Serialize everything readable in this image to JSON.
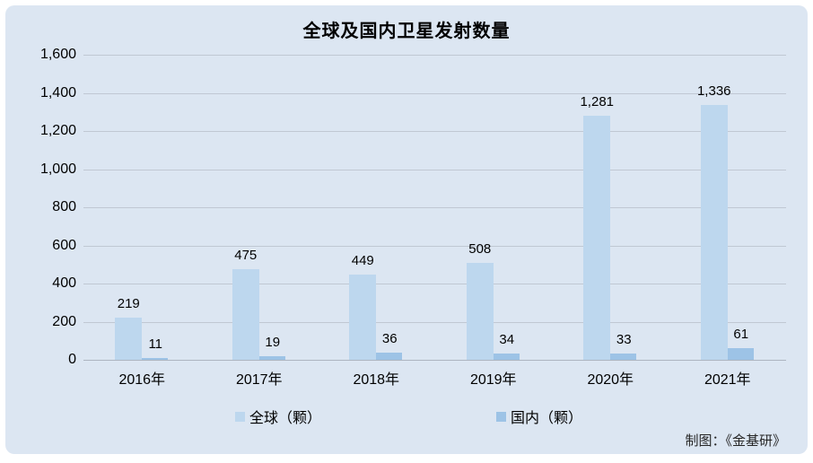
{
  "title": "全球及国内卫星发射数量",
  "credit": "制图：《金基研》",
  "colors": {
    "panel_background": "#dce6f2",
    "global_bar": "#bdd7ee",
    "domestic_bar": "#9dc3e6",
    "gridline": "#9aa0a8",
    "text": "#000000"
  },
  "chart_data": {
    "type": "bar",
    "title": "全球及国内卫星发射数量",
    "categories": [
      "2016年",
      "2017年",
      "2018年",
      "2019年",
      "2020年",
      "2021年"
    ],
    "series": [
      {
        "key": "global",
        "name": "全球（颗）",
        "values": [
          219,
          475,
          449,
          508,
          1281,
          1336
        ],
        "labels": [
          "219",
          "475",
          "449",
          "508",
          "1,281",
          "1,336"
        ],
        "color": "#bdd7ee"
      },
      {
        "key": "domestic",
        "name": "国内（颗）",
        "values": [
          11,
          19,
          36,
          34,
          33,
          61
        ],
        "labels": [
          "11",
          "19",
          "36",
          "34",
          "33",
          "61"
        ],
        "color": "#9dc3e6"
      }
    ],
    "xlabel": "",
    "ylabel": "",
    "ylim": [
      0,
      1600
    ],
    "ytick_step": 200,
    "ytick_labels": [
      "0",
      "200",
      "400",
      "600",
      "800",
      "1,000",
      "1,200",
      "1,400",
      "1,600"
    ],
    "grid": true,
    "legend_position": "bottom",
    "data_labels_shown": true
  }
}
